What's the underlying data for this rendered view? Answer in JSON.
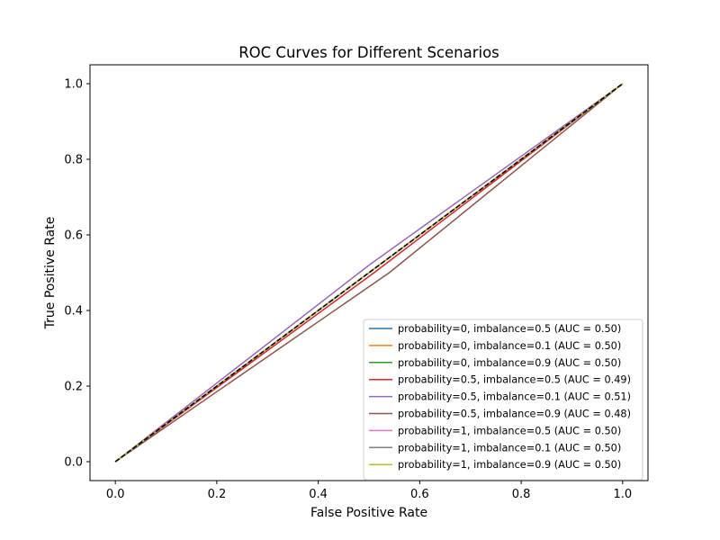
{
  "chart_data": {
    "type": "line",
    "title": "ROC Curves for Different Scenarios",
    "xlabel": "False Positive Rate",
    "ylabel": "True Positive Rate",
    "xlim": [
      -0.05,
      1.05
    ],
    "ylim": [
      -0.05,
      1.05
    ],
    "xticks": [
      0.0,
      0.2,
      0.4,
      0.6,
      0.8,
      1.0
    ],
    "yticks": [
      0.0,
      0.2,
      0.4,
      0.6,
      0.8,
      1.0
    ],
    "xtick_labels": [
      "0.0",
      "0.2",
      "0.4",
      "0.6",
      "0.8",
      "1.0"
    ],
    "ytick_labels": [
      "0.0",
      "0.2",
      "0.4",
      "0.6",
      "0.8",
      "1.0"
    ],
    "grid": false,
    "legend_position": "lower-right",
    "series": [
      {
        "name": "probability=0, imbalance=0.5 (AUC = 0.50)",
        "color": "#1f77b4",
        "x": [
          0,
          1
        ],
        "y": [
          0,
          1
        ]
      },
      {
        "name": "probability=0, imbalance=0.1 (AUC = 0.50)",
        "color": "#ff7f0e",
        "x": [
          0,
          1
        ],
        "y": [
          0,
          1
        ]
      },
      {
        "name": "probability=0, imbalance=0.9 (AUC = 0.50)",
        "color": "#2ca02c",
        "x": [
          0,
          1
        ],
        "y": [
          0,
          1
        ]
      },
      {
        "name": "probability=0.5, imbalance=0.5 (AUC = 0.49)",
        "color": "#d62728",
        "x": [
          0,
          0.51,
          1
        ],
        "y": [
          0,
          0.5,
          1
        ]
      },
      {
        "name": "probability=0.5, imbalance=0.1 (AUC = 0.51)",
        "color": "#9467bd",
        "x": [
          0,
          0.5,
          1
        ],
        "y": [
          0,
          0.52,
          1
        ]
      },
      {
        "name": "probability=0.5, imbalance=0.9 (AUC = 0.48)",
        "color": "#8c564b",
        "x": [
          0,
          0.54,
          1
        ],
        "y": [
          0,
          0.5,
          1
        ]
      },
      {
        "name": "probability=1, imbalance=0.5 (AUC = 0.50)",
        "color": "#e377c2",
        "x": [
          0,
          1
        ],
        "y": [
          0,
          1
        ]
      },
      {
        "name": "probability=1, imbalance=0.1 (AUC = 0.50)",
        "color": "#7f7f7f",
        "x": [
          0,
          1
        ],
        "y": [
          0,
          1
        ]
      },
      {
        "name": "probability=1, imbalance=0.9 (AUC = 0.50)",
        "color": "#bcbd22",
        "x": [
          0,
          1
        ],
        "y": [
          0,
          1
        ]
      }
    ],
    "reference_line": {
      "x": [
        0,
        1
      ],
      "y": [
        0,
        1
      ],
      "color": "#000000",
      "style": "dashed"
    }
  }
}
